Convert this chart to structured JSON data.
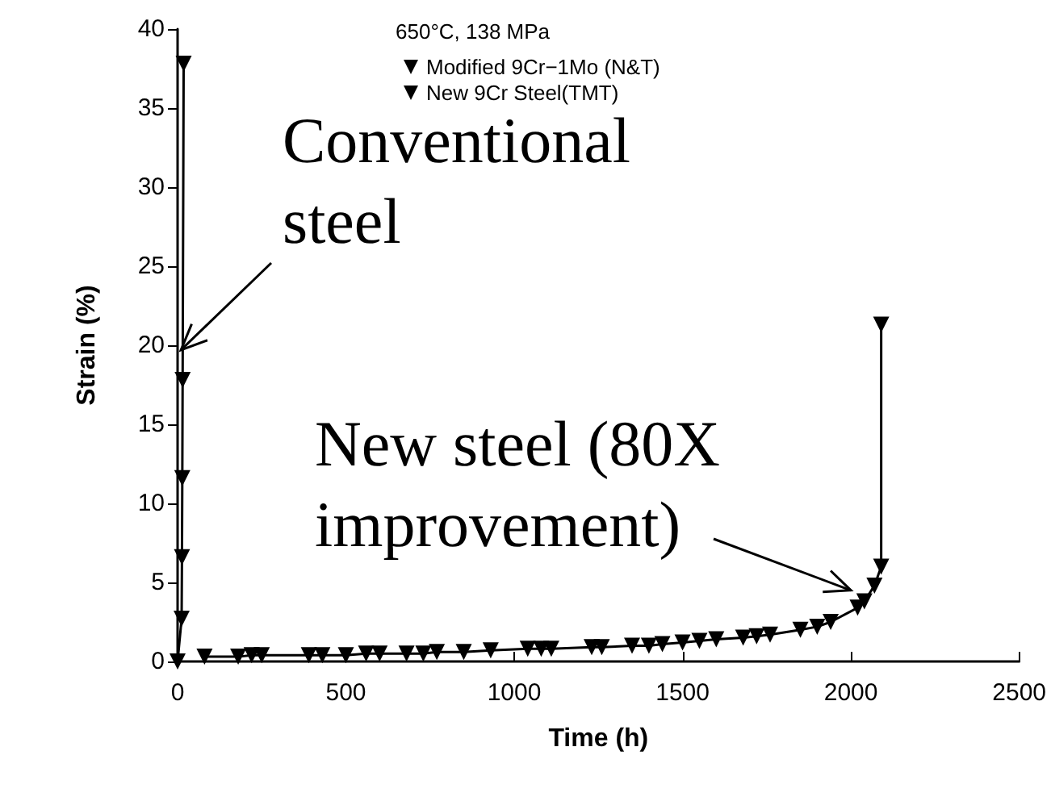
{
  "chart_data": {
    "type": "line",
    "xlabel": "Time (h)",
    "ylabel": "Strain (%)",
    "legend_title": "650°C, 138 MPa",
    "xlim": [
      0,
      2500
    ],
    "xticks": [
      0,
      500,
      1000,
      1500,
      2000,
      2500
    ],
    "ylim": [
      0,
      40
    ],
    "yticks": [
      0,
      5,
      10,
      15,
      20,
      25,
      30,
      35,
      40
    ],
    "grid": false,
    "legend": "top",
    "marker": "triangle",
    "line_style": "solid",
    "series": [
      {
        "name": "Modified 9Cr−1Mo (N&T)",
        "color": "#000000",
        "x": [
          0,
          12,
          13,
          14,
          15,
          18
        ],
        "values": [
          0,
          2.7,
          6.6,
          11.6,
          17.8,
          37.8
        ]
      },
      {
        "name": "New 9Cr Steel(TMT)",
        "color": "#000000",
        "x": [
          80,
          180,
          220,
          250,
          390,
          430,
          500,
          560,
          600,
          680,
          730,
          770,
          850,
          930,
          1040,
          1080,
          1110,
          1230,
          1260,
          1350,
          1400,
          1440,
          1500,
          1550,
          1600,
          1680,
          1720,
          1760,
          1850,
          1900,
          1940,
          2020,
          2040,
          2070,
          2090,
          2090
        ],
        "values": [
          0.3,
          0.3,
          0.4,
          0.4,
          0.4,
          0.4,
          0.4,
          0.5,
          0.5,
          0.5,
          0.5,
          0.6,
          0.6,
          0.7,
          0.8,
          0.8,
          0.8,
          0.9,
          0.9,
          1.0,
          1.0,
          1.1,
          1.2,
          1.3,
          1.4,
          1.5,
          1.6,
          1.7,
          2.0,
          2.2,
          2.5,
          3.4,
          3.8,
          4.8,
          6.0,
          21.3
        ]
      }
    ],
    "annotations": [
      {
        "text": "Conventional steel",
        "x": 10,
        "y": 19.7
      },
      {
        "text": "New steel (80X improvement)",
        "x": 2000,
        "y": 4.5
      }
    ]
  }
}
